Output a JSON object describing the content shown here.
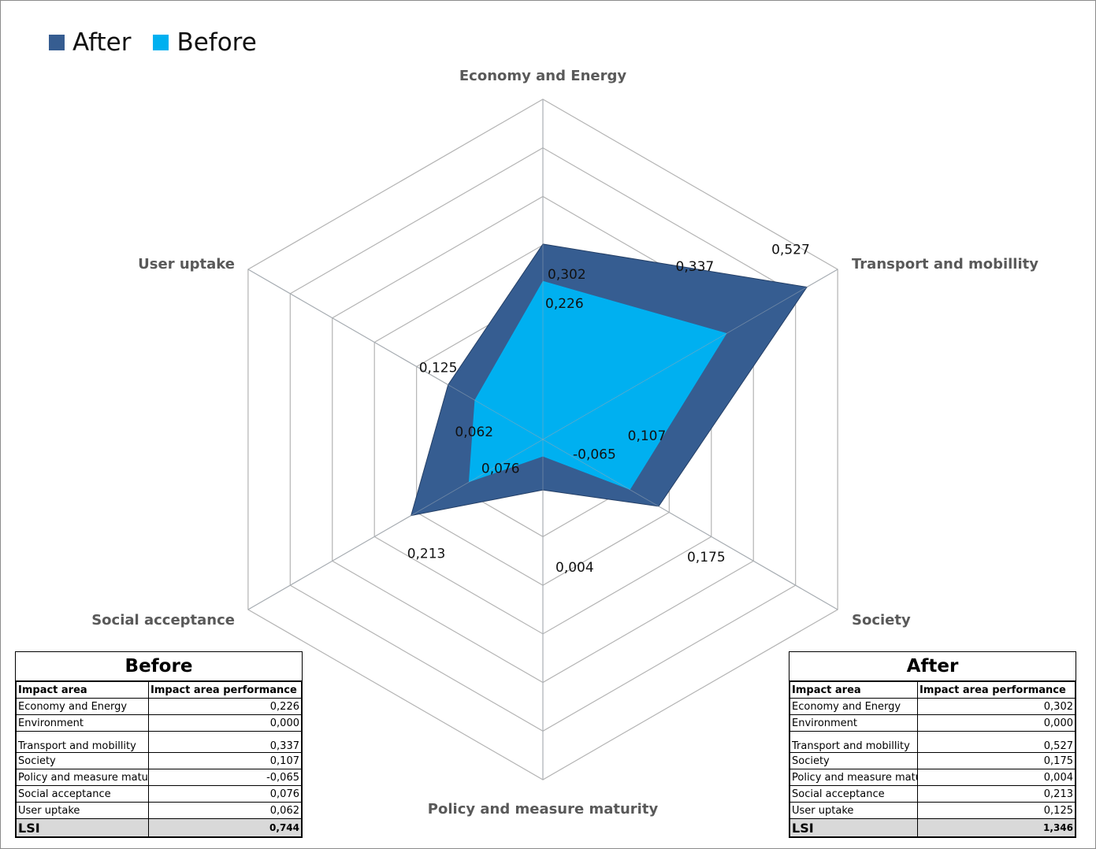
{
  "chart_data": {
    "type": "radar",
    "axes": [
      "Economy and Energy",
      "Transport and mobillity",
      "Society",
      "Policy and measure maturity",
      "Social acceptance",
      "User uptake"
    ],
    "series": [
      {
        "name": "After",
        "color": "#365d91",
        "values": [
          0.302,
          0.527,
          0.175,
          0.004,
          0.213,
          0.125
        ],
        "labels": [
          "0,302",
          "0,527",
          "0,175",
          "0,004",
          "0,213",
          "0,125"
        ]
      },
      {
        "name": "Before",
        "color": "#00b0f0",
        "values": [
          0.226,
          0.337,
          0.107,
          -0.065,
          0.076,
          0.062
        ],
        "labels": [
          "0,226",
          "0,337",
          "0,107",
          "-0,065",
          "0,076",
          "0,062"
        ]
      }
    ],
    "rmin": -0.1,
    "rmax": 0.6,
    "rings": 7,
    "legend": "top-left",
    "grid": true
  },
  "tables": {
    "before": {
      "title": "Before",
      "col1": "Impact area",
      "col2": "Impact area performance",
      "rows": [
        {
          "area": "Economy and Energy",
          "value": "0,226"
        },
        {
          "area": "Environment",
          "value": "0,000"
        },
        {
          "area": "Transport and mobillity",
          "value": "0,337"
        },
        {
          "area": "Society",
          "value": "0,107"
        },
        {
          "area": "Policy and measure matur",
          "value": "-0,065"
        },
        {
          "area": "Social acceptance",
          "value": "0,076"
        },
        {
          "area": "User uptake",
          "value": "0,062"
        }
      ],
      "lsi_label": "LSI",
      "lsi_value": "0,744"
    },
    "after": {
      "title": "After",
      "col1": "Impact area",
      "col2": "Impact area performance",
      "rows": [
        {
          "area": "Economy and Energy",
          "value": "0,302"
        },
        {
          "area": "Environment",
          "value": "0,000"
        },
        {
          "area": "Transport and mobillity",
          "value": "0,527"
        },
        {
          "area": "Society",
          "value": "0,175"
        },
        {
          "area": "Policy and measure matu",
          "value": "0,004"
        },
        {
          "area": "Social acceptance",
          "value": "0,213"
        },
        {
          "area": "User uptake",
          "value": "0,125"
        }
      ],
      "lsi_label": "LSI",
      "lsi_value": "1,346"
    }
  }
}
